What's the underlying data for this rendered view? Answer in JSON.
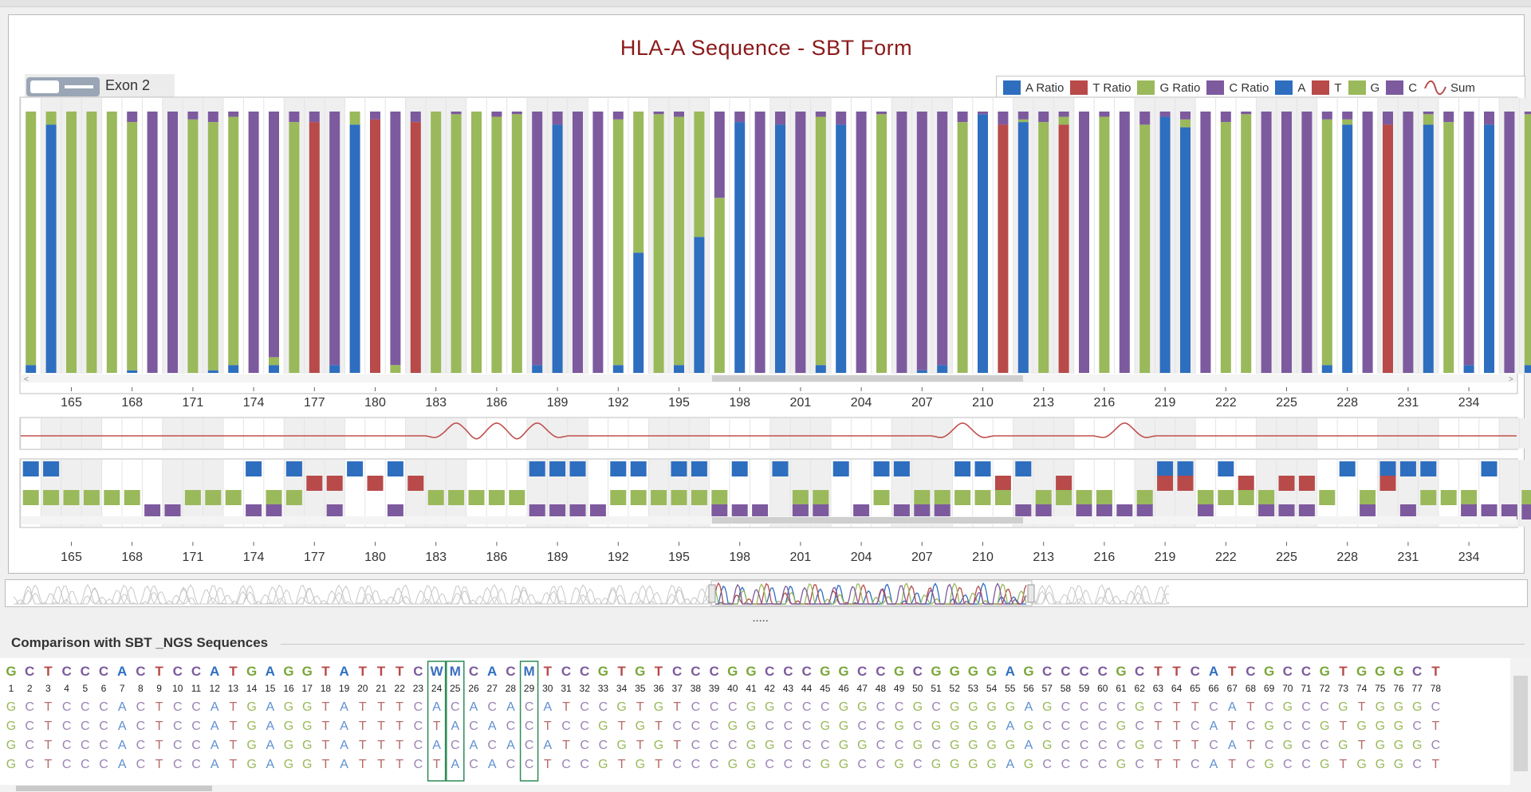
{
  "title": "HLA-A Sequence - SBT Form",
  "exon_label": "Exon 2",
  "legend": [
    {
      "label": "A Ratio",
      "color": "#2e6ebf"
    },
    {
      "label": "T Ratio",
      "color": "#b84a4a"
    },
    {
      "label": "G Ratio",
      "color": "#9ab95b"
    },
    {
      "label": "C Ratio",
      "color": "#7d5a9e"
    },
    {
      "label": "A",
      "color": "#2e6ebf"
    },
    {
      "label": "T",
      "color": "#b84a4a"
    },
    {
      "label": "G",
      "color": "#9ab95b"
    },
    {
      "label": "C",
      "color": "#7d5a9e"
    },
    {
      "label": "Sum",
      "color": "#b84a4a",
      "icon": "wave-icon"
    }
  ],
  "colors": {
    "A": "#2e6ebf",
    "T": "#b84a4a",
    "G": "#9ab95b",
    "C": "#7d5a9e",
    "sum": "#c0504d"
  },
  "chart_data": {
    "type": "bar",
    "stacked": true,
    "x_start": 163,
    "x_ticks": [
      165,
      168,
      171,
      174,
      177,
      180,
      183,
      186,
      189,
      192,
      195,
      198,
      201,
      204,
      207,
      210,
      213,
      216,
      219,
      222,
      225,
      228,
      231,
      234
    ],
    "ylim": [
      0,
      1
    ],
    "grid": true,
    "legend_placement": "top-right",
    "bases": "AGGGGGCCGGGAGATTATATGGGGGACACAGGAGCCCAGCACAAGGAGGCCGGCCCTTGATGTTGAGAAGGGCCCACTCAGAGGCCGGCACGCACCCTTGAGGTCGCCAGGGCCCGTAGGG",
    "ratios_note": "each bar stacks base fractions in order A, T, G, C",
    "series": [
      {
        "name": "A Ratio",
        "values": [
          0.03,
          0.95,
          0,
          0,
          0,
          0.01,
          0,
          0,
          0,
          0.01,
          0.03,
          0,
          0.03,
          0,
          0,
          0.03,
          0.95,
          0,
          0,
          0,
          0,
          0,
          0,
          0,
          0,
          0.03,
          0.95,
          0,
          0,
          0.03,
          0.46,
          0,
          0.03,
          0.52,
          0,
          0.96,
          0,
          0.95,
          0,
          0.03,
          0.95,
          0,
          0,
          0,
          0.01,
          0.03,
          0,
          0.99,
          0,
          0.96,
          0,
          0,
          0,
          0,
          0,
          0,
          0.98,
          0.94,
          0,
          0,
          0,
          0,
          0,
          0,
          0.03,
          0.95,
          0,
          0,
          0,
          0.95,
          0,
          0.03,
          0.95,
          0,
          0.03,
          0.94,
          0,
          0,
          0,
          0.03,
          0.95,
          0,
          0,
          0.01,
          0,
          0.03,
          0.95,
          0,
          0,
          0,
          0.03,
          0.03,
          0,
          0,
          0,
          0,
          0,
          0
        ]
      },
      {
        "name": "T Ratio",
        "values": [
          0,
          0,
          0,
          0,
          0,
          0,
          0,
          0,
          0,
          0,
          0,
          0,
          0,
          0,
          0.96,
          0,
          0,
          0.97,
          0,
          0.96,
          0,
          0,
          0,
          0,
          0,
          0,
          0,
          0,
          0,
          0,
          0,
          0,
          0,
          0,
          0,
          0,
          0,
          0,
          0,
          0,
          0,
          0,
          0,
          0,
          0,
          0,
          0,
          0,
          0.95,
          0,
          0,
          0.95,
          0,
          0,
          0,
          0,
          0,
          0,
          0,
          0,
          0,
          0,
          0,
          0,
          0,
          0,
          0,
          0.95,
          0,
          0,
          0,
          0,
          0,
          0,
          0,
          0.04,
          0.52,
          0.95,
          0,
          0,
          0,
          0,
          0,
          0,
          0,
          0,
          0,
          0,
          0.03,
          0.95,
          0,
          0,
          0,
          0,
          0.01,
          0.95,
          0,
          0,
          0,
          0
        ]
      },
      {
        "name": "G Ratio",
        "values": [
          0.97,
          0.05,
          1,
          1,
          1,
          0.95,
          0,
          0,
          0.97,
          0.95,
          0.95,
          0,
          0.03,
          0.96,
          0,
          0,
          0.05,
          0,
          0.03,
          0,
          1,
          0.99,
          1,
          0.98,
          0.99,
          0,
          0,
          0,
          0,
          0.94,
          0.54,
          0.99,
          0.95,
          0.48,
          0.67,
          0,
          0,
          0,
          0,
          0.95,
          0,
          0,
          0.99,
          0,
          0,
          0,
          0.96,
          0,
          0,
          0.01,
          0.96,
          0.03,
          0,
          0.98,
          0,
          0.95,
          0,
          0.03,
          0,
          0.96,
          0.99,
          0,
          0,
          0,
          0.94,
          0.02,
          0,
          0,
          0,
          0.04,
          0.96,
          0,
          0,
          0,
          0.96,
          0,
          0,
          0,
          0.95,
          0.96,
          0,
          0,
          0.95,
          0.96,
          0,
          0.97,
          0.04,
          0.97,
          0,
          0,
          0,
          0,
          0,
          0.03,
          0.99,
          0,
          0.97,
          1,
          0.97,
          0.97
        ]
      },
      {
        "name": "C Ratio",
        "values": [
          0,
          0,
          0,
          0,
          0,
          0.04,
          1,
          1,
          0.03,
          0.04,
          0.02,
          1,
          0.94,
          0.04,
          0.04,
          0.97,
          0,
          0.03,
          0.97,
          0.04,
          0,
          0.01,
          0,
          0.02,
          0.01,
          0.97,
          0.05,
          1,
          1,
          0.03,
          0,
          0.01,
          0.02,
          0,
          0.33,
          0.04,
          1,
          0.05,
          1,
          0.02,
          0.05,
          1,
          0.01,
          1,
          0.99,
          0.97,
          0.04,
          0.01,
          0.05,
          0.03,
          0.04,
          0.02,
          1,
          0.02,
          1,
          0.05,
          0.02,
          0.03,
          1,
          0.04,
          0.01,
          1,
          1,
          1,
          0.03,
          0.03,
          1,
          0.05,
          1,
          0.01,
          0.04,
          0.97,
          0.05,
          1,
          0.01,
          0.02,
          0.48,
          0.05,
          0.05,
          0.01,
          0.05,
          1,
          0.05,
          0.03,
          1,
          0,
          0.01,
          0.03,
          0.97,
          0.05,
          0.97,
          0.97,
          1,
          0.97,
          0,
          0.05,
          0.03,
          0,
          0.03,
          0.03
        ]
      }
    ],
    "sum_peaks_at": [
      184,
      186,
      188,
      209,
      217
    ]
  },
  "comparison": {
    "title": "Comparison with SBT _NGS Sequences",
    "consensus": [
      "G",
      "C",
      "T",
      "C",
      "C",
      "C",
      "A",
      "C",
      "T",
      "C",
      "C",
      "A",
      "T",
      "G",
      "A",
      "G",
      "G",
      "T",
      "A",
      "T",
      "T",
      "T",
      "C",
      "W",
      "M",
      "C",
      "A",
      "C",
      "M",
      "T",
      "C",
      "C",
      "G",
      "T",
      "G",
      "T",
      "C",
      "C",
      "C",
      "G",
      "G",
      "C",
      "C",
      "C",
      "G",
      "G",
      "C",
      "C",
      "G",
      "C",
      "G",
      "G",
      "G",
      "G",
      "A",
      "G",
      "C",
      "C",
      "C",
      "C",
      "G",
      "C",
      "T",
      "T",
      "C",
      "A",
      "T",
      "C",
      "G",
      "C",
      "C",
      "G",
      "T",
      "G",
      "G",
      "G",
      "C",
      "T"
    ],
    "positions": [
      "1",
      "2",
      "3",
      "4",
      "5",
      "6",
      "7",
      "8",
      "9",
      "10",
      "11",
      "12",
      "13",
      "14",
      "15",
      "16",
      "17",
      "18",
      "19",
      "20",
      "21",
      "22",
      "23",
      "24",
      "25",
      "26",
      "27",
      "28",
      "29",
      "30",
      "31",
      "32",
      "33",
      "34",
      "35",
      "36",
      "37",
      "38",
      "39",
      "40",
      "41",
      "42",
      "43",
      "44",
      "45",
      "46",
      "47",
      "48",
      "49",
      "50",
      "51",
      "52",
      "53",
      "54",
      "55",
      "56",
      "57",
      "58",
      "59",
      "60",
      "61",
      "62",
      "63",
      "64",
      "65",
      "66",
      "67",
      "68",
      "69",
      "70",
      "71",
      "72",
      "73",
      "74",
      "75",
      "76",
      "77",
      "78"
    ],
    "rows": [
      "GCTCCCACTCCATGAGGTATTTCACACACATCCGTGTCCCGGCCCGGCCGCGGGGAGCCCCGCTTCATCGCCGTGGGCT",
      "GCTCCCACTCCATGAGGTATTTCTACACCTCCGTGTCCCGGCCCGGCCGCGGGGAGCCCCGCTTCATCGCCGTGGGCT",
      "GCTCCCACTCCATGAGGTATTTCACACACATCCGTGTCCCGGCCCGGCCGCGGGGAGCCCCGCTTCATCGCCGTGGGCT",
      "GCTCCCACTCCATGAGGTATTTCTACACCTCCGTGTCCCGGCCCGGCCGCGGGGAGCCCCGCTTCATCGCCGTGGGCT"
    ],
    "highlight_positions": [
      24,
      25,
      29
    ]
  },
  "splitter_label": "....."
}
